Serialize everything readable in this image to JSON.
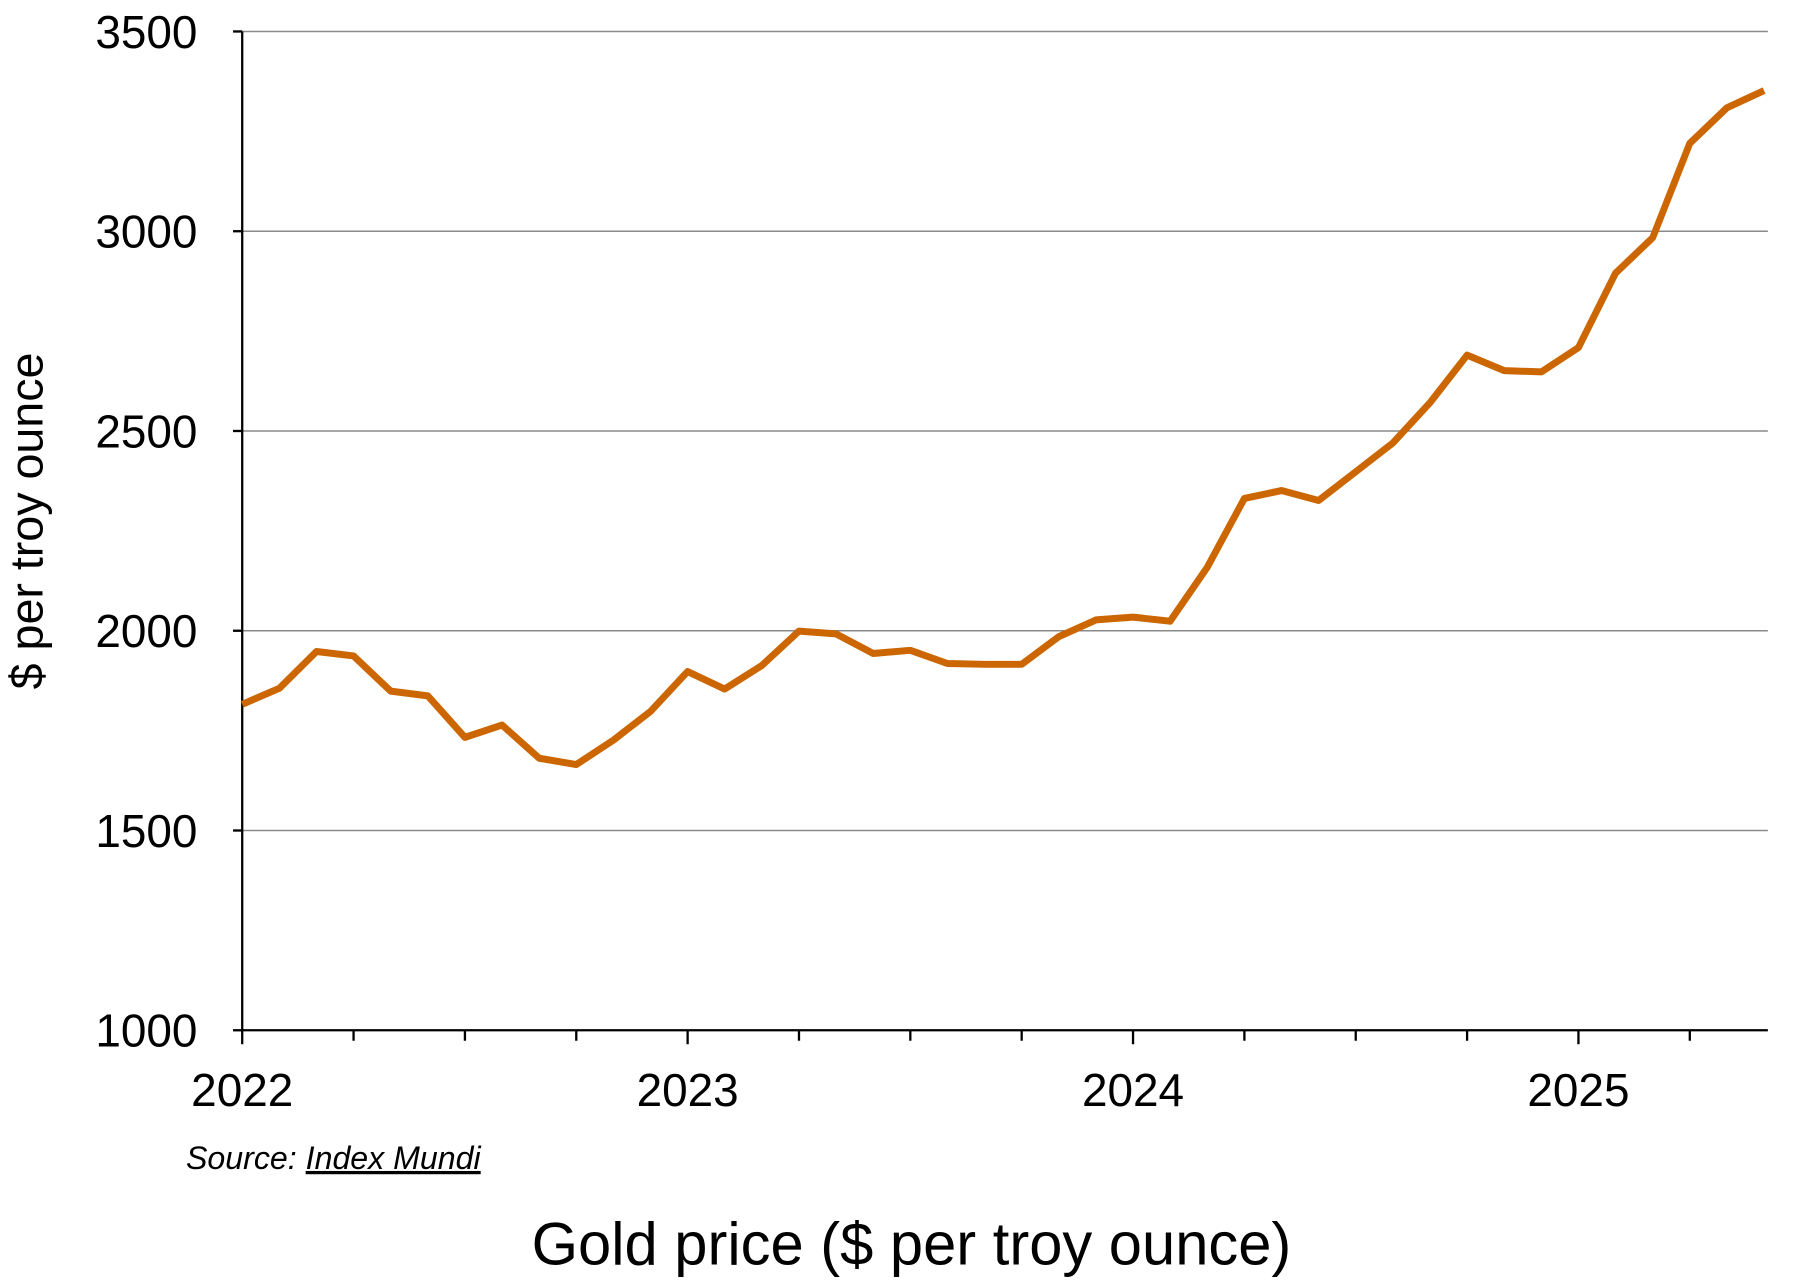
{
  "chart_data": {
    "type": "line",
    "title": "Gold price ($ per troy ounce)",
    "xlabel": "",
    "ylabel": "$ per troy ounce",
    "source_label": "Source",
    "source_name": "Index Mundi",
    "ylim": [
      1000,
      3500
    ],
    "yticks": [
      "1000",
      "1500",
      "2000",
      "2500",
      "3000",
      "3500"
    ],
    "xticks": [
      "2022",
      "2023",
      "2024",
      "2025"
    ],
    "grid": true,
    "line_color": "#CC6600",
    "x_start": "2022-01",
    "x_frequency": "monthly",
    "x": [
      "2022-01",
      "2022-02",
      "2022-03",
      "2022-04",
      "2022-05",
      "2022-06",
      "2022-07",
      "2022-08",
      "2022-09",
      "2022-10",
      "2022-11",
      "2022-12",
      "2023-01",
      "2023-02",
      "2023-03",
      "2023-04",
      "2023-05",
      "2023-06",
      "2023-07",
      "2023-08",
      "2023-09",
      "2023-10",
      "2023-11",
      "2023-12",
      "2024-01",
      "2024-02",
      "2024-03",
      "2024-04",
      "2024-05",
      "2024-06",
      "2024-07",
      "2024-08",
      "2024-09",
      "2024-10",
      "2024-11",
      "2024-12",
      "2025-01",
      "2025-02",
      "2025-03",
      "2025-04",
      "2025-05",
      "2025-06"
    ],
    "values": [
      1816,
      1856,
      1948,
      1937,
      1849,
      1837,
      1733,
      1764,
      1681,
      1665,
      1726,
      1798,
      1898,
      1854,
      1913,
      1999,
      1992,
      1943,
      1951,
      1918,
      1916,
      1916,
      1985,
      2027,
      2034,
      2024,
      2159,
      2331,
      2351,
      2326,
      2398,
      2470,
      2571,
      2690,
      2651,
      2648,
      2709,
      2895,
      2984,
      3220,
      3309,
      3352
    ]
  }
}
